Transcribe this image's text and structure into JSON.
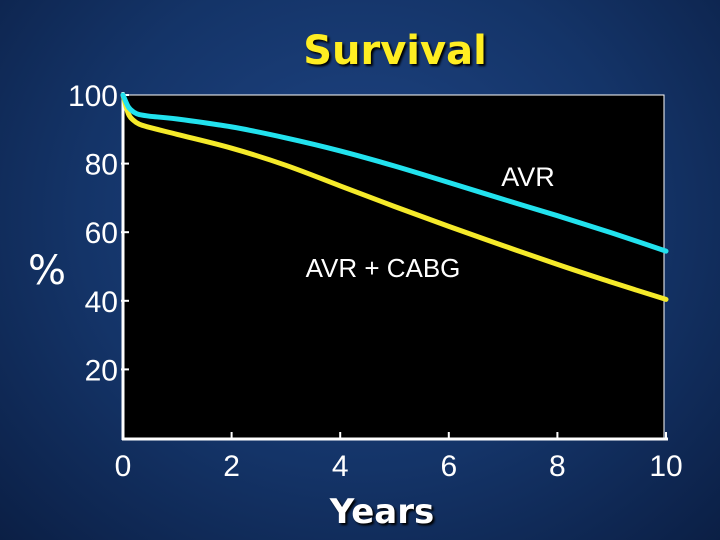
{
  "chart_data": {
    "type": "line",
    "title": "Survival",
    "xlabel": "Years",
    "ylabel": "%",
    "xlim": [
      0,
      10
    ],
    "ylim": [
      0,
      100
    ],
    "xticks": [
      "0",
      "2",
      "4",
      "6",
      "8",
      "10"
    ],
    "yticks": [
      "20",
      "40",
      "60",
      "80",
      "100"
    ],
    "grid": false,
    "series": [
      {
        "name": "AVR",
        "color": "#22e2ee",
        "x": [
          0,
          0.1,
          0.2,
          0.3,
          0.5,
          1,
          2,
          3,
          4,
          5,
          6,
          7,
          8,
          9,
          10
        ],
        "y": [
          100,
          96.5,
          95,
          94.3,
          93.8,
          93,
          90.7,
          87.5,
          83.7,
          79.3,
          74.5,
          69.6,
          64.8,
          59.8,
          54.5
        ]
      },
      {
        "name": "AVR + CABG",
        "color": "#f5ea2a",
        "x": [
          0,
          0.1,
          0.2,
          0.3,
          0.5,
          1,
          2,
          3,
          4,
          5,
          6,
          7,
          8,
          9,
          10
        ],
        "y": [
          100,
          94.5,
          92.5,
          91.5,
          90.5,
          88.5,
          84.5,
          79.5,
          73.5,
          67.5,
          61.7,
          56.1,
          50.6,
          45.4,
          40.4
        ]
      }
    ]
  }
}
